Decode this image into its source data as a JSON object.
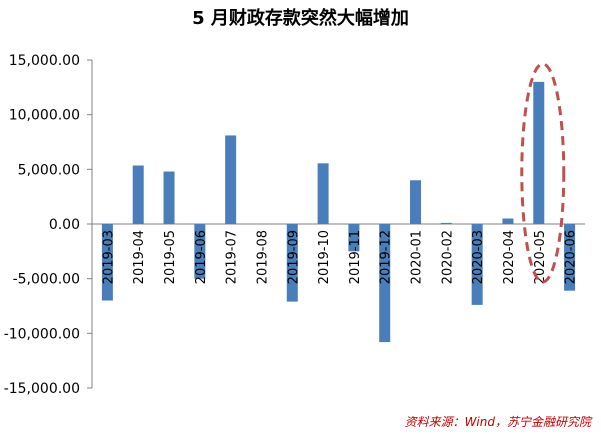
{
  "title": "5 月财政存款突然大幅增加",
  "source": "资料来源：Wind，苏宁金融研究院",
  "colors": {
    "bar": "#4a7ebb",
    "axis": "#808080",
    "highlight_ellipse": "#c0504d"
  },
  "chart_data": {
    "type": "bar",
    "title": "5 月财政存款突然大幅增加",
    "xlabel": "",
    "ylabel": "",
    "ylim": [
      -15000,
      15000
    ],
    "yticks": [
      15000,
      10000,
      5000,
      0,
      -5000,
      -10000,
      -15000
    ],
    "ytick_labels": [
      "15,000.00",
      "10,000.00",
      "5,000.00",
      "0.00",
      "-5,000.00",
      "-10,000.00",
      "-15,000.00"
    ],
    "grid": false,
    "categories": [
      "2019-03",
      "2019-04",
      "2019-05",
      "2019-06",
      "2019-07",
      "2019-08",
      "2019-09",
      "2019-10",
      "2019-11",
      "2019-12",
      "2020-01",
      "2020-02",
      "2020-03",
      "2020-04",
      "2020-05",
      "2020-06"
    ],
    "values": [
      -7000,
      5350,
      4800,
      -5000,
      8100,
      0,
      -7100,
      5550,
      -2500,
      -10800,
      4000,
      100,
      -7400,
      500,
      13000,
      -6100
    ],
    "highlight_category": "2020-05"
  }
}
